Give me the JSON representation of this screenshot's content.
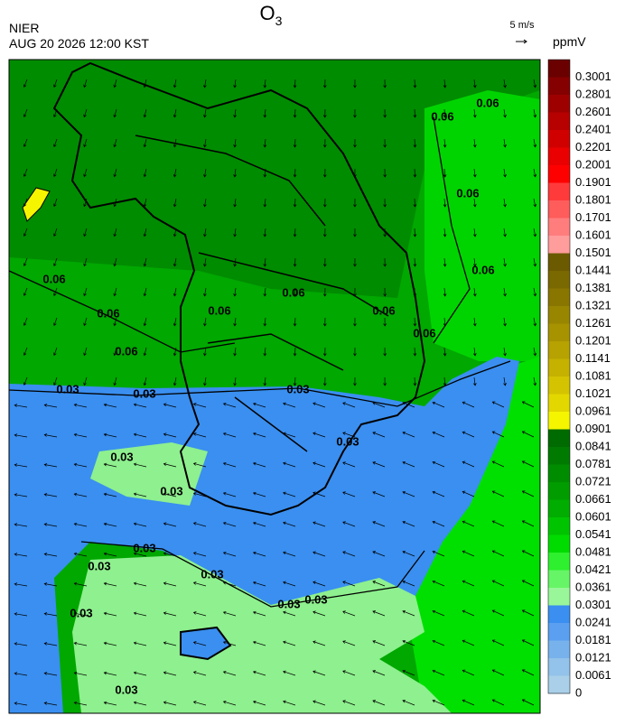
{
  "header": {
    "title": "O",
    "title_subscript": "3",
    "agency": "NIER",
    "datetime": "AUG 20 2026 12:00 KST",
    "vector_scale": "5 m/s"
  },
  "colorbar": {
    "unit": "ppmV",
    "labels": [
      "0.3001",
      "0.2801",
      "0.2601",
      "0.2401",
      "0.2201",
      "0.2001",
      "0.1901",
      "0.1801",
      "0.1701",
      "0.1601",
      "0.1501",
      "0.1441",
      "0.1381",
      "0.1321",
      "0.1261",
      "0.1201",
      "0.1141",
      "0.1081",
      "0.1021",
      "0.0961",
      "0.0901",
      "0.0841",
      "0.0781",
      "0.0721",
      "0.0661",
      "0.0601",
      "0.0541",
      "0.0481",
      "0.0421",
      "0.0361",
      "0.0301",
      "0.0241",
      "0.0181",
      "0.0121",
      "0.0061",
      "0"
    ]
  },
  "map": {
    "contour_labels": [
      "0.06",
      "0.06",
      "0.06",
      "0.06",
      "0.06",
      "0.06",
      "0.06",
      "0.06",
      "0.06",
      "0.06",
      "0.06",
      "0.03",
      "0.03",
      "0.03",
      "0.03",
      "0.03",
      "0.03",
      "0.03",
      "0.03",
      "0.03",
      "0.03",
      "0.03",
      "0.03",
      "0.03"
    ]
  }
}
